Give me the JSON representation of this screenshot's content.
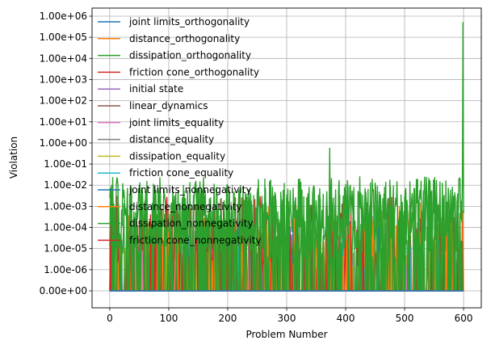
{
  "chart_data": {
    "type": "line",
    "title": "",
    "xlabel": "Problem Number",
    "ylabel": "Violation",
    "xlim": [
      -30,
      630
    ],
    "x_ticks": [
      0,
      100,
      200,
      300,
      400,
      500,
      600
    ],
    "x_tick_labels": [
      "0",
      "100",
      "200",
      "300",
      "400",
      "500",
      "600"
    ],
    "y_scale": "symlog",
    "y_tick_values": [
      0,
      1e-06,
      1e-05,
      0.0001,
      0.001,
      0.01,
      0.1,
      1,
      10,
      100,
      1000,
      10000,
      100000,
      1000000
    ],
    "y_tick_labels": [
      "0.00e+00",
      "1.00e-06",
      "1.00e-05",
      "1.00e-04",
      "1.00e-03",
      "1.00e-02",
      "1.00e-01",
      "1.00e+00",
      "1.00e+01",
      "1.00e+02",
      "1.00e+03",
      "1.00e+04",
      "1.00e+05",
      "1.00e+06"
    ],
    "grid": true,
    "legend_position": "upper-left",
    "series": [
      {
        "name": "joint limits_orthogonality",
        "color": "#1f77b4",
        "values": []
      },
      {
        "name": "distance_orthogonality",
        "color": "#ff7f0e",
        "values": []
      },
      {
        "name": "dissipation_orthogonality",
        "color": "#2ca02c",
        "values": []
      },
      {
        "name": "friction cone_orthogonality",
        "color": "#d62728",
        "values": []
      },
      {
        "name": "initial state",
        "color": "#9467bd",
        "values": []
      },
      {
        "name": "linear_dynamics",
        "color": "#8c564b",
        "values": []
      },
      {
        "name": "joint limits_equality",
        "color": "#e377c2",
        "values": []
      },
      {
        "name": "distance_equality",
        "color": "#7f7f7f",
        "values": []
      },
      {
        "name": "dissipation_equality",
        "color": "#bcbd22",
        "values": []
      },
      {
        "name": "friction cone_equality",
        "color": "#17becf",
        "values": []
      },
      {
        "name": "joint limits_nonnegativity",
        "color": "#1f77b4",
        "values": []
      },
      {
        "name": "distance_nonnegativity",
        "color": "#ff7f0e",
        "values": []
      },
      {
        "name": "dissipation_nonnegativity",
        "color": "#2ca02c",
        "values": []
      },
      {
        "name": "friction cone_nonnegativity",
        "color": "#d62728",
        "values": []
      }
    ]
  }
}
